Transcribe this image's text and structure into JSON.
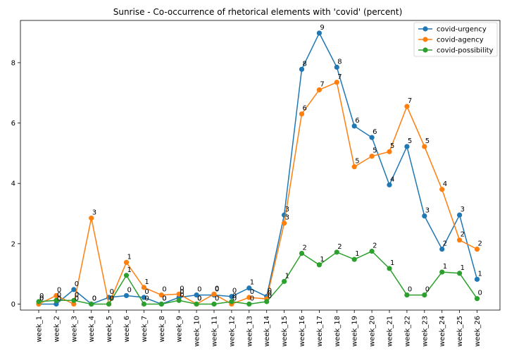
{
  "chart_data": {
    "type": "line",
    "title": "Sunrise - Co-occurrence of rhetorical elements with 'covid' (percent)",
    "xlabel": "",
    "ylabel": "",
    "categories": [
      "week_1",
      "week_2",
      "week_3",
      "week_4",
      "week_5",
      "week_6",
      "week_7",
      "week_8",
      "week_9",
      "week_10",
      "week_11",
      "week_12",
      "week_13",
      "week_14",
      "week_15",
      "week_16",
      "week_17",
      "week_18",
      "week_19",
      "week_20",
      "week_21",
      "week_22",
      "week_23",
      "week_24",
      "week_25",
      "week_26"
    ],
    "ylim": [
      -0.2,
      9.4
    ],
    "yticks": [
      0,
      2,
      4,
      6,
      8
    ],
    "grid": false,
    "legend_position": "top-right",
    "series": [
      {
        "name": "covid-urgency",
        "color": "#1f77b4",
        "values": [
          0.0,
          0.0,
          0.48,
          0.0,
          0.22,
          0.28,
          0.22,
          0.0,
          0.22,
          0.3,
          0.3,
          0.25,
          0.53,
          0.25,
          2.95,
          7.78,
          8.98,
          7.85,
          5.9,
          5.52,
          3.95,
          5.22,
          2.92,
          1.82,
          2.95,
          0.82
        ],
        "labels": [
          "0",
          "0",
          "0",
          "0",
          "0",
          "0",
          "0",
          "0",
          "0",
          "0",
          "0",
          "0",
          "1",
          "0",
          "3",
          "8",
          "9",
          "8",
          "6",
          "6",
          "4",
          "5",
          "3",
          "2",
          "3",
          "1"
        ]
      },
      {
        "name": "covid-agency",
        "color": "#ff7f0e",
        "values": [
          0.0,
          0.28,
          0.0,
          2.85,
          0.0,
          1.38,
          0.55,
          0.3,
          0.33,
          0.0,
          0.33,
          0.0,
          0.22,
          0.17,
          2.68,
          6.3,
          7.1,
          7.35,
          4.55,
          4.9,
          5.05,
          6.55,
          5.22,
          3.8,
          2.12,
          1.82
        ],
        "labels": [
          "0",
          "0",
          "0",
          "3",
          "0",
          "1",
          "1",
          "0",
          "0",
          "0",
          "0",
          "0",
          "0",
          "0",
          "3",
          "6",
          "7",
          "7",
          "5",
          "5",
          "5",
          "7",
          "5",
          "4",
          "2",
          "2"
        ]
      },
      {
        "name": "covid-possibility",
        "color": "#2ca02c",
        "values": [
          0.08,
          0.12,
          0.12,
          0.0,
          0.0,
          0.95,
          0.0,
          0.0,
          0.12,
          0.0,
          0.0,
          0.08,
          0.0,
          0.08,
          0.75,
          1.68,
          1.3,
          1.72,
          1.48,
          1.75,
          1.18,
          0.3,
          0.3,
          1.06,
          1.02,
          0.18
        ],
        "labels": [
          "0",
          "0",
          "0",
          "0",
          "0",
          "1",
          "0",
          "0",
          "0",
          "0",
          "0",
          "0",
          "0",
          "0",
          "1",
          "2",
          "1",
          "2",
          "1",
          "2",
          "1",
          "0",
          "0",
          "1",
          "1",
          "0"
        ]
      }
    ]
  }
}
